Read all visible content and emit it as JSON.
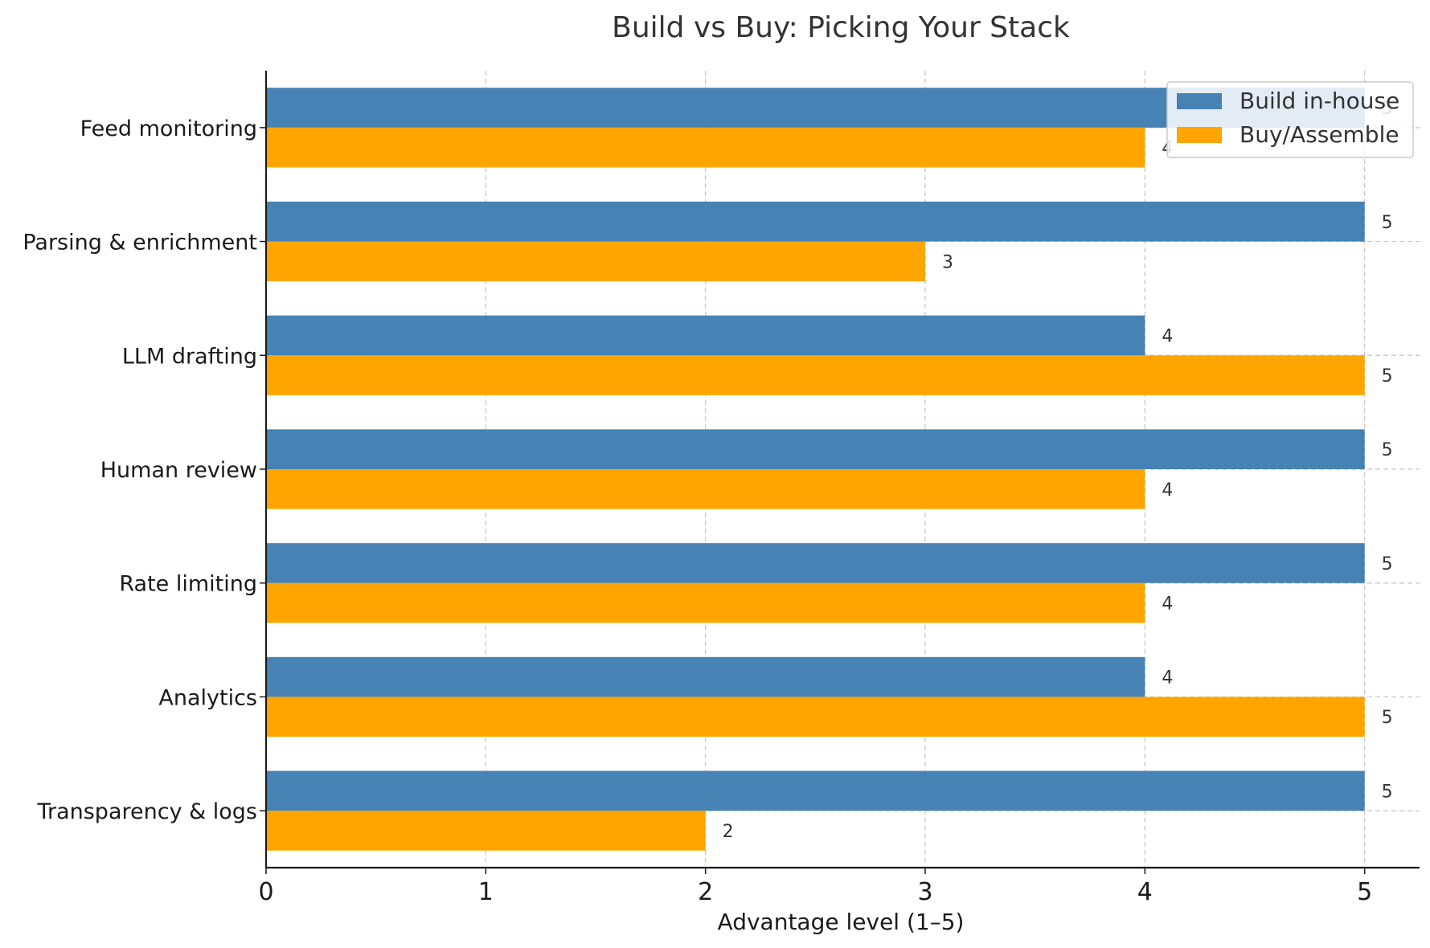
{
  "chart_data": {
    "type": "bar",
    "orientation": "horizontal",
    "title": "Build vs Buy: Picking Your Stack",
    "xlabel": "Advantage level (1–5)",
    "ylabel": "",
    "xlim": [
      0,
      5.25
    ],
    "xticks": [
      "0",
      "1",
      "2",
      "3",
      "4",
      "5"
    ],
    "grid": true,
    "legend_position": "top-right",
    "categories": [
      "Feed monitoring",
      "Parsing & enrichment",
      "LLM drafting",
      "Human review",
      "Rate limiting",
      "Analytics",
      "Transparency & logs"
    ],
    "series": [
      {
        "name": "Build in-house",
        "color": "#4682b4",
        "values": [
          5,
          5,
          4,
          5,
          5,
          4,
          5
        ]
      },
      {
        "name": "Buy/Assemble",
        "color": "#ffa500",
        "values": [
          4,
          3,
          5,
          4,
          4,
          5,
          2
        ]
      }
    ]
  }
}
